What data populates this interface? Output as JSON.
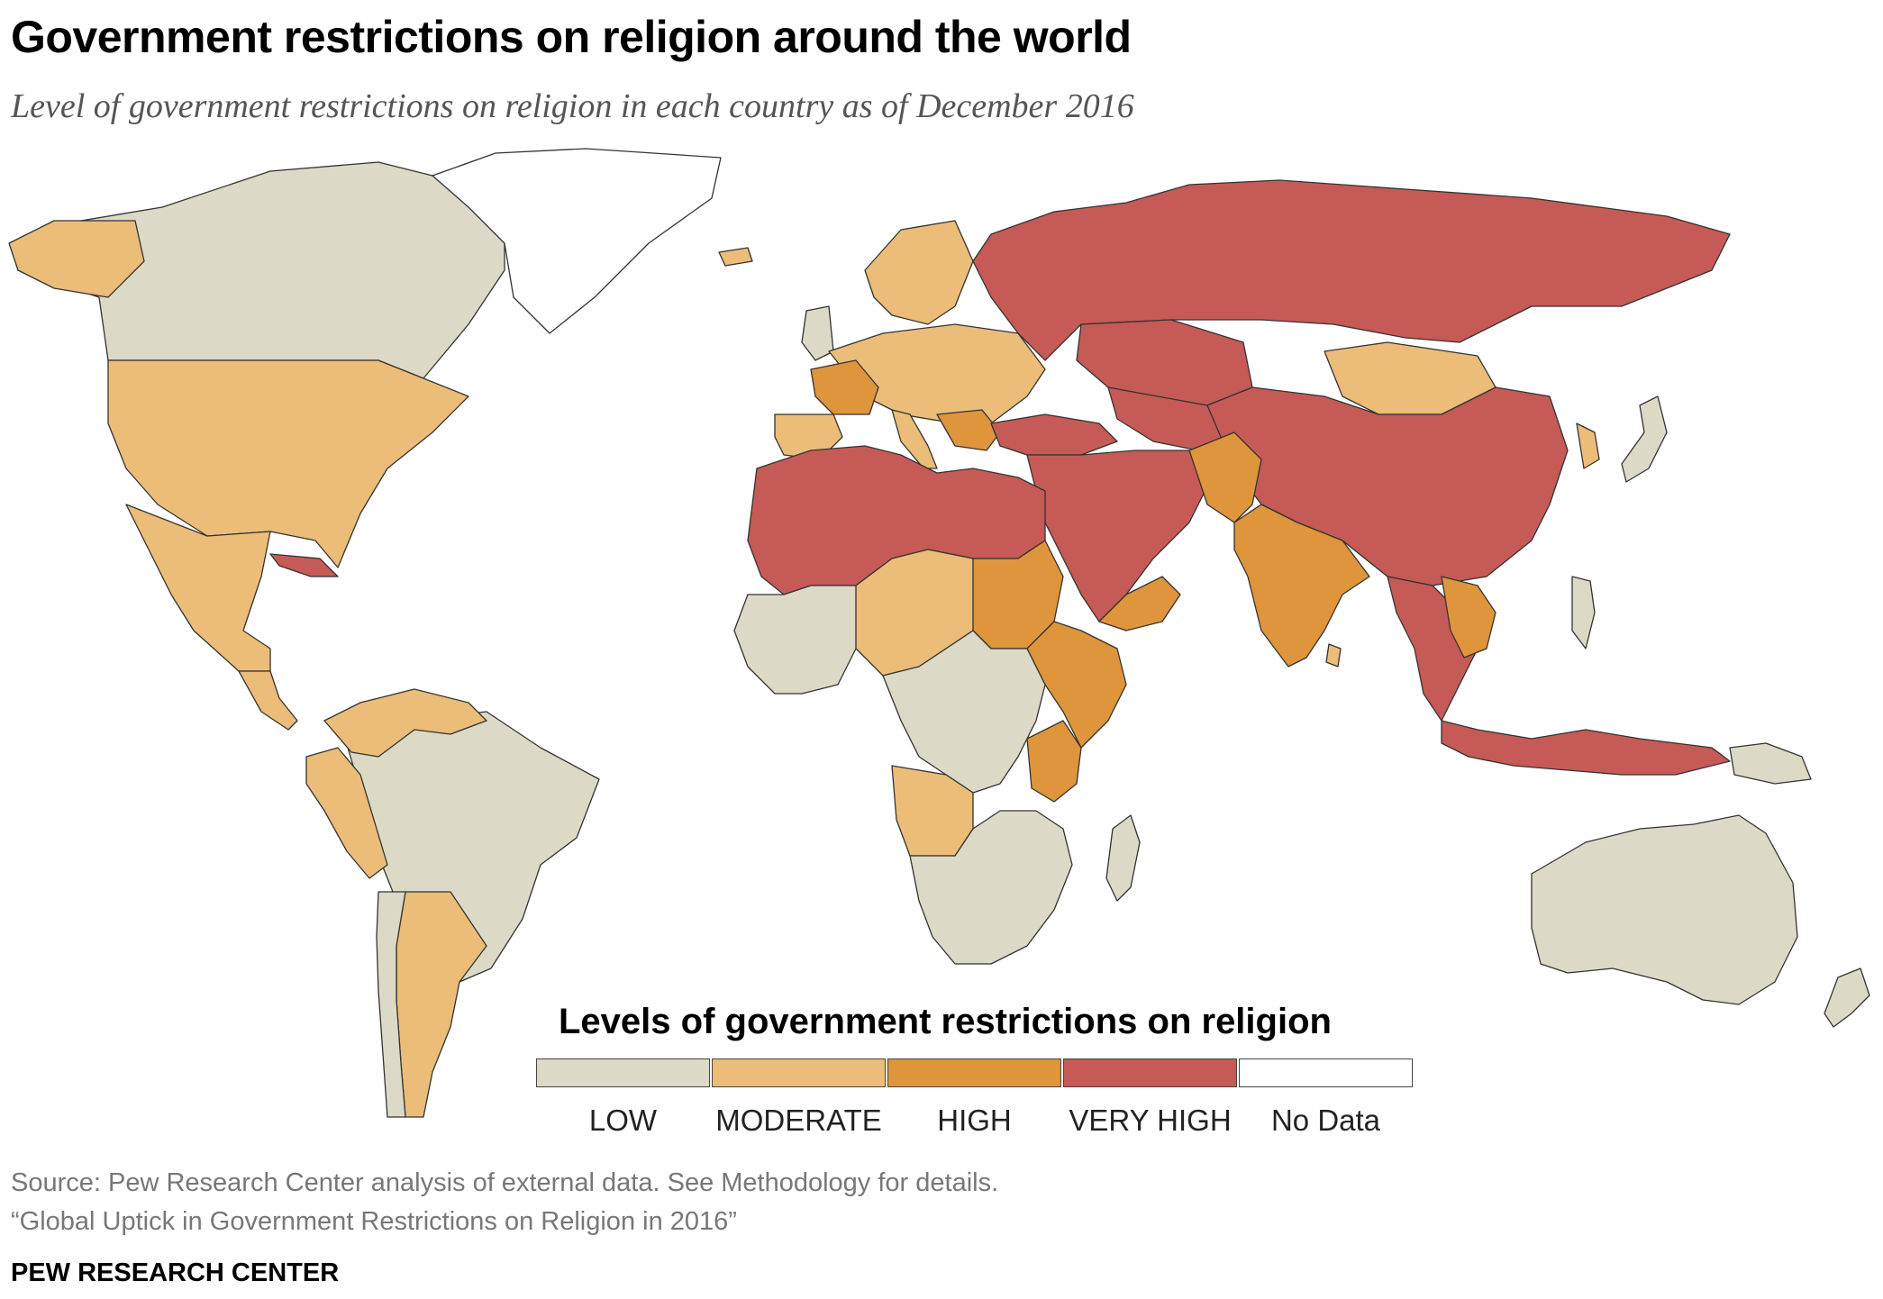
{
  "title": "Government restrictions on religion around the world",
  "subtitle": "Level of government restrictions on religion in each country as of December 2016",
  "legend": {
    "title": "Levels of government restrictions on religion",
    "items": [
      {
        "label": "LOW",
        "color": "#dcd9c6"
      },
      {
        "label": "MODERATE",
        "color": "#ebbd78"
      },
      {
        "label": "HIGH",
        "color": "#de953b"
      },
      {
        "label": "VERY HIGH",
        "color": "#c65a56"
      },
      {
        "label": "No Data",
        "color": "#ffffff"
      }
    ]
  },
  "source": {
    "line1": "Source: Pew Research Center analysis of external data. See Methodology for details.",
    "line2": "“Global Uptick in Government Restrictions on Religion in 2016”"
  },
  "brand": "PEW RESEARCH CENTER"
}
